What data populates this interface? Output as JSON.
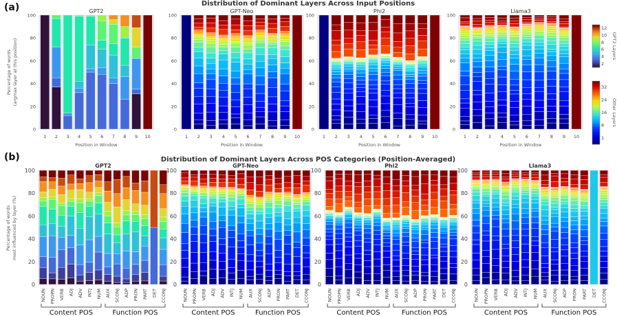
{
  "figure": {
    "panel_a_letter": "(a)",
    "panel_b_letter": "(b)"
  },
  "chart_data": [
    {
      "type": "bar",
      "stacked": true,
      "title": "Distribution of Dominant Layers Across Input Positions",
      "xlabel": "Position in Window",
      "ylabel": "Percentage of words\n(argmax layer at this position)",
      "ylabel_lines": [
        "Percentage of words",
        "(argmax layer at this position)"
      ],
      "ylim": [
        0,
        100
      ],
      "yticks": [
        0,
        20,
        40,
        60,
        80,
        100
      ],
      "categories": [
        "1",
        "2",
        "3",
        "4",
        "5",
        "6",
        "7",
        "8",
        "9",
        "10"
      ],
      "colorbars": [
        {
          "label": "GPT2 Layers",
          "ticks": [
            "2",
            "4",
            "6",
            "8",
            "10",
            "12"
          ]
        },
        {
          "label": "Other Layers",
          "ticks": [
            "1",
            "8",
            "16",
            "24",
            "32"
          ]
        }
      ],
      "subplots": [
        {
          "name": "GPT2",
          "layers": 12,
          "colormap": "turbo",
          "series_note": "dominant-layer shares per position (bottom-to-top: low layers to high layers)",
          "columns": [
            [
              {
                "layer": 1,
                "pct": 100
              }
            ],
            [
              {
                "layer": 1,
                "pct": 37
              },
              {
                "layer": 3,
                "pct": 8
              },
              {
                "layer": 4,
                "pct": 27
              },
              {
                "layer": 6,
                "pct": 25
              },
              {
                "layer": 7,
                "pct": 3
              }
            ],
            [
              {
                "layer": 3,
                "pct": 12
              },
              {
                "layer": 4,
                "pct": 2
              },
              {
                "layer": 6,
                "pct": 86
              }
            ],
            [
              {
                "layer": 3,
                "pct": 32
              },
              {
                "layer": 4,
                "pct": 4
              },
              {
                "layer": 5,
                "pct": 6
              },
              {
                "layer": 6,
                "pct": 57
              },
              {
                "layer": 7,
                "pct": 1
              }
            ],
            [
              {
                "layer": 3,
                "pct": 50
              },
              {
                "layer": 4,
                "pct": 3
              },
              {
                "layer": 5,
                "pct": 21
              },
              {
                "layer": 6,
                "pct": 25
              },
              {
                "layer": 7,
                "pct": 1
              }
            ],
            [
              {
                "layer": 3,
                "pct": 48
              },
              {
                "layer": 4,
                "pct": 6
              },
              {
                "layer": 5,
                "pct": 16
              },
              {
                "layer": 6,
                "pct": 8
              },
              {
                "layer": 7,
                "pct": 17
              },
              {
                "layer": 8,
                "pct": 5
              }
            ],
            [
              {
                "layer": 3,
                "pct": 40
              },
              {
                "layer": 4,
                "pct": 5
              },
              {
                "layer": 5,
                "pct": 20
              },
              {
                "layer": 6,
                "pct": 10
              },
              {
                "layer": 7,
                "pct": 17
              },
              {
                "layer": 9,
                "pct": 4
              },
              {
                "layer": 10,
                "pct": 4
              }
            ],
            [
              {
                "layer": 3,
                "pct": 26
              },
              {
                "layer": 4,
                "pct": 20
              },
              {
                "layer": 5,
                "pct": 10
              },
              {
                "layer": 6,
                "pct": 24
              },
              {
                "layer": 8,
                "pct": 10
              },
              {
                "layer": 10,
                "pct": 10
              }
            ],
            [
              {
                "layer": 1,
                "pct": 31
              },
              {
                "layer": 3,
                "pct": 4
              },
              {
                "layer": 4,
                "pct": 27
              },
              {
                "layer": 7,
                "pct": 10
              },
              {
                "layer": 9,
                "pct": 17
              },
              {
                "layer": 11,
                "pct": 11
              }
            ],
            [
              {
                "layer": 12,
                "pct": 100
              }
            ]
          ]
        },
        {
          "name": "GPT-Neo",
          "layers": 24,
          "colormap": "jet"
        },
        {
          "name": "Phi2",
          "layers": 32,
          "colormap": "jet"
        },
        {
          "name": "Llama3",
          "layers": 32,
          "colormap": "jet"
        }
      ]
    },
    {
      "type": "bar",
      "stacked": true,
      "title": "Distribution of Dominant Layers Across POS Categories (Position-Averaged)",
      "ylabel": "Percentage of words\nmost influenced by layer (%)",
      "ylabel_lines": [
        "Percentage of words",
        "most influenced by layer (%)"
      ],
      "ylim": [
        0,
        100
      ],
      "yticks": [
        0,
        20,
        40,
        60,
        80,
        100
      ],
      "categories": [
        "NOUN",
        "PROPN",
        "VERB",
        "ADJ",
        "ADV",
        "INTJ",
        "NUM",
        "AUX",
        "SCONJ",
        "ADP",
        "PRON",
        "PART",
        "DET",
        "CCONJ"
      ],
      "groups": [
        {
          "label": "Content POS",
          "members": [
            "NOUN",
            "PROPN",
            "VERB",
            "ADJ",
            "ADV",
            "INTJ",
            "NUM"
          ]
        },
        {
          "label": "Function POS",
          "members": [
            "AUX",
            "SCONJ",
            "ADP",
            "PRON",
            "PART",
            "DET",
            "CCONJ"
          ]
        }
      ],
      "subplots": [
        {
          "name": "GPT2",
          "layers": 12,
          "colormap": "turbo"
        },
        {
          "name": "GPT-Neo",
          "layers": 24,
          "colormap": "jet"
        },
        {
          "name": "Phi2",
          "layers": 32,
          "colormap": "jet"
        },
        {
          "name": "Llama3",
          "layers": 32,
          "colormap": "jet"
        }
      ]
    }
  ]
}
